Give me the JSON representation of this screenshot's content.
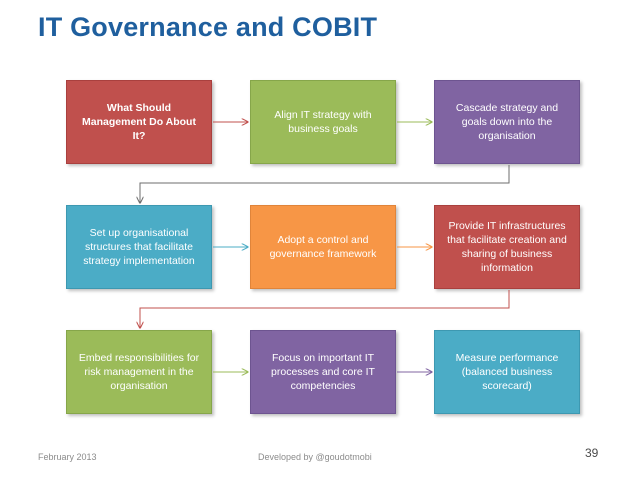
{
  "title": "IT Governance and COBIT",
  "boxes": [
    {
      "text": "What Should Management Do About It?",
      "color": "#c0504d"
    },
    {
      "text": "Align IT strategy with business goals",
      "color": "#9bbb59"
    },
    {
      "text": "Cascade strategy and goals down into the organisation",
      "color": "#8064a2"
    },
    {
      "text": "Set up organisational structures that facilitate strategy implementation",
      "color": "#4bacc6"
    },
    {
      "text": "Adopt a control and governance framework",
      "color": "#f79646"
    },
    {
      "text": "Provide IT infrastructures that facilitate creation and sharing of business information",
      "color": "#c0504d"
    },
    {
      "text": "Embed responsibilities for risk management in the organisation",
      "color": "#9bbb59"
    },
    {
      "text": "Focus on important IT processes and core IT competencies",
      "color": "#8064a2"
    },
    {
      "text": "Measure performance (balanced business scorecard)",
      "color": "#4bacc6"
    }
  ],
  "footer": {
    "date": "February 2013",
    "credit": "Developed by @goudotmobi",
    "page": "39"
  }
}
